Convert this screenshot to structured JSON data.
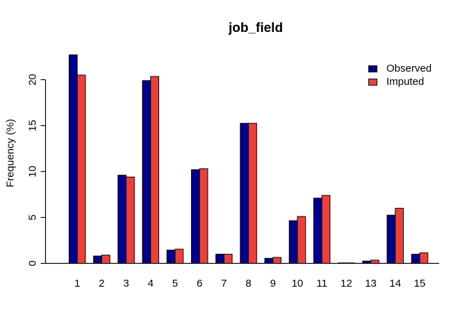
{
  "window": {
    "background_color": "#ffffff"
  },
  "chart_data": {
    "type": "bar",
    "title": "job_field",
    "xlabel": "",
    "ylabel": "Frequency (%)",
    "categories": [
      "1",
      "2",
      "3",
      "4",
      "5",
      "6",
      "7",
      "8",
      "9",
      "10",
      "11",
      "12",
      "13",
      "14",
      "15"
    ],
    "series": [
      {
        "name": "Observed",
        "color": "#00008B",
        "values": [
          22.7,
          0.8,
          9.6,
          19.9,
          1.45,
          10.2,
          1.0,
          15.25,
          0.55,
          4.65,
          7.1,
          0.05,
          0.25,
          5.25,
          1.0
        ]
      },
      {
        "name": "Imputed",
        "color": "#EE403B",
        "values": [
          20.5,
          0.9,
          9.4,
          20.35,
          1.55,
          10.3,
          1.0,
          15.25,
          0.65,
          5.1,
          7.4,
          0.05,
          0.35,
          6.0,
          1.15
        ]
      }
    ],
    "ylim": [
      0,
      20
    ],
    "yticks": [
      0,
      5,
      10,
      15,
      20
    ],
    "grid": false,
    "bar_outline_color": "#000000",
    "axis_color": "#000000",
    "legend_position": "top-right"
  }
}
